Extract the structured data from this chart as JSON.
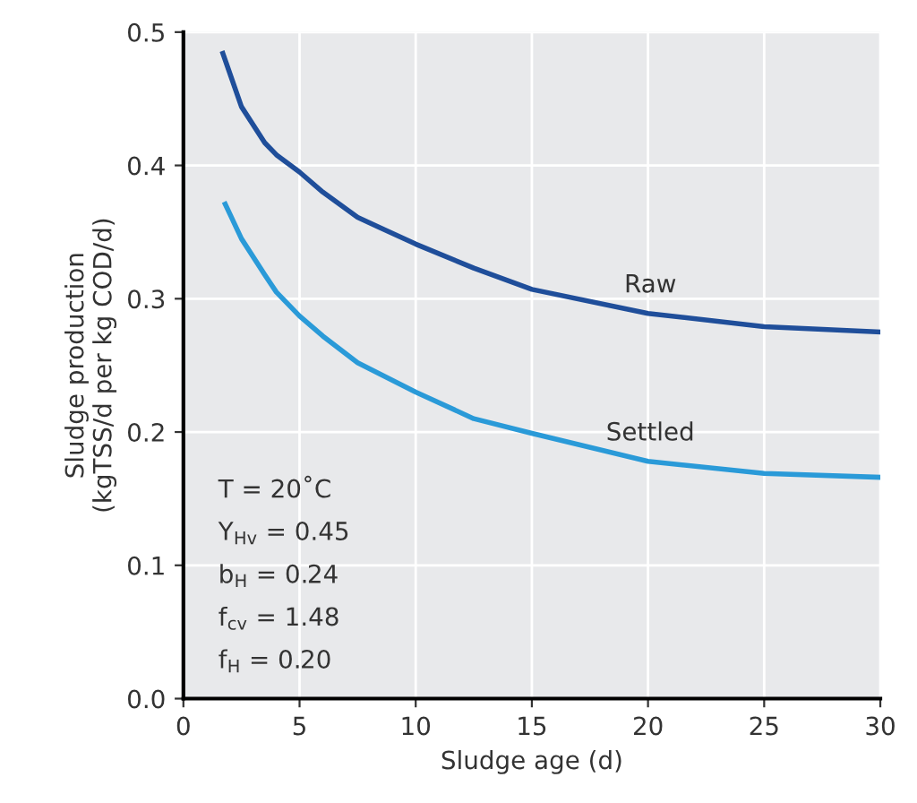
{
  "chart_data": {
    "type": "line",
    "xlabel": "Sludge age (d)",
    "ylabel": "Sludge production\n(kgTSS/d per kg COD/d)",
    "xlim": [
      0,
      30
    ],
    "ylim": [
      0.0,
      0.5
    ],
    "xticks": [
      0,
      5,
      10,
      15,
      20,
      25,
      30
    ],
    "yticks": [
      {
        "value": 0,
        "label": "0.0"
      },
      0.1,
      0.2,
      0.3,
      0.4,
      0.5
    ],
    "grid": true,
    "legend": false,
    "marker": "none",
    "line_style": "solid",
    "series": [
      {
        "name": "Raw",
        "color": "#1f4e9a",
        "x": [
          1.7,
          2.5,
          3.5,
          4,
          5,
          6,
          7.5,
          10,
          12.5,
          15,
          20,
          25,
          30
        ],
        "values": [
          0.484,
          0.444,
          0.417,
          0.408,
          0.395,
          0.38,
          0.361,
          0.341,
          0.323,
          0.307,
          0.289,
          0.279,
          0.275
        ]
      },
      {
        "name": "Settled",
        "color": "#2a9ad8",
        "x": [
          1.8,
          2.5,
          3.5,
          4,
          5,
          6,
          7.5,
          10,
          12.5,
          15,
          20,
          25,
          30
        ],
        "values": [
          0.371,
          0.345,
          0.318,
          0.305,
          0.287,
          0.272,
          0.252,
          0.23,
          0.21,
          0.199,
          0.178,
          0.169,
          0.166
        ]
      }
    ],
    "annotations": [
      "T = 20˚C",
      "Y$_{Hv}$ = 0.45",
      "b$_{H}$ = 0.24",
      "f$_{cv}$ = 1.48",
      "f$_{H}$ = 0.20"
    ]
  }
}
